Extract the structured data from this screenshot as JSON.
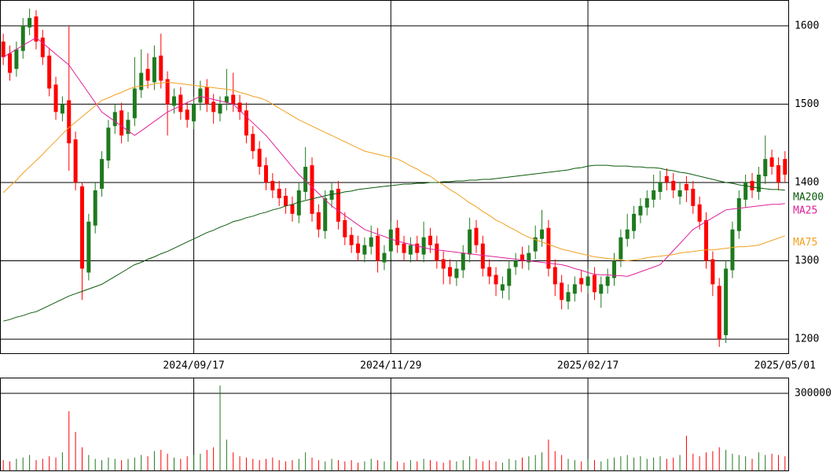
{
  "chart_data": {
    "type": "candlestick",
    "categories": [
      null,
      null,
      null,
      null,
      null,
      null,
      null,
      null,
      null,
      null,
      null,
      null,
      null,
      null,
      null,
      null,
      null,
      null,
      null,
      null,
      null,
      null,
      null,
      null,
      null,
      null,
      null,
      null,
      null,
      "2024/09/17",
      null,
      null,
      null,
      null,
      null,
      null,
      null,
      null,
      null,
      null,
      null,
      null,
      null,
      null,
      null,
      null,
      null,
      null,
      null,
      null,
      null,
      null,
      null,
      null,
      null,
      null,
      null,
      null,
      null,
      "2024/11/29",
      null,
      null,
      null,
      null,
      null,
      null,
      null,
      null,
      null,
      null,
      null,
      null,
      null,
      null,
      null,
      null,
      null,
      null,
      null,
      null,
      null,
      null,
      null,
      null,
      null,
      null,
      null,
      null,
      null,
      "2025/02/17",
      null,
      null,
      null,
      null,
      null,
      null,
      null,
      null,
      null,
      null,
      null,
      null,
      null,
      null,
      null,
      null,
      null,
      null,
      null,
      null,
      null,
      null,
      null,
      null,
      null,
      null,
      null,
      null,
      null,
      "2025/05/01"
    ],
    "open": [
      1580,
      1565,
      1545,
      1568,
      1598,
      1612,
      1585,
      1562,
      1525,
      1488,
      1505,
      1455,
      1395,
      1285,
      1345,
      1392,
      1428,
      1472,
      1492,
      1462,
      1482,
      1518,
      1545,
      1528,
      1562,
      1532,
      1498,
      1512,
      1493,
      1478,
      1502,
      1522,
      1503,
      1488,
      1502,
      1512,
      1502,
      1492,
      1462,
      1443,
      1422,
      1402,
      1392,
      1383,
      1372,
      1358,
      1388,
      1422,
      1362,
      1338,
      1378,
      1392,
      1352,
      1333,
      1322,
      1308,
      1318,
      1332,
      1298,
      1312,
      1342,
      1322,
      1308,
      1322,
      1308,
      1332,
      1322,
      1302,
      1292,
      1278,
      1288,
      1308,
      1342,
      1322,
      1292,
      1282,
      1262,
      1268,
      1292,
      1308,
      1298,
      1312,
      1328,
      1342,
      1292,
      1272,
      1248,
      1258,
      1278,
      1268,
      1282,
      1258,
      1268,
      1278,
      1302,
      1328,
      1338,
      1358,
      1368,
      1378,
      1388,
      1408,
      1402,
      1382,
      1398,
      1392,
      1372,
      1352,
      1302,
      1268,
      1205,
      1288,
      1338,
      1378,
      1402,
      1388,
      1408,
      1432,
      1422,
      1430
    ],
    "high": [
      1590,
      1575,
      1580,
      1610,
      1622,
      1620,
      1595,
      1572,
      1535,
      1510,
      1600,
      1465,
      1400,
      1360,
      1400,
      1440,
      1480,
      1500,
      1502,
      1490,
      1560,
      1570,
      1565,
      1575,
      1590,
      1542,
      1520,
      1522,
      1503,
      1510,
      1530,
      1532,
      1513,
      1510,
      1545,
      1540,
      1512,
      1502,
      1472,
      1453,
      1432,
      1412,
      1402,
      1393,
      1382,
      1400,
      1445,
      1432,
      1372,
      1390,
      1400,
      1402,
      1362,
      1343,
      1332,
      1330,
      1345,
      1342,
      1320,
      1350,
      1352,
      1332,
      1330,
      1332,
      1350,
      1342,
      1332,
      1312,
      1302,
      1300,
      1320,
      1355,
      1352,
      1332,
      1302,
      1292,
      1280,
      1300,
      1310,
      1318,
      1320,
      1345,
      1365,
      1352,
      1302,
      1282,
      1270,
      1280,
      1288,
      1290,
      1292,
      1280,
      1290,
      1310,
      1340,
      1360,
      1370,
      1380,
      1390,
      1410,
      1415,
      1418,
      1412,
      1400,
      1408,
      1402,
      1382,
      1362,
      1312,
      1278,
      1300,
      1350,
      1390,
      1410,
      1412,
      1420,
      1460,
      1442,
      1432,
      1440
    ],
    "low": [
      1550,
      1530,
      1535,
      1558,
      1588,
      1570,
      1550,
      1510,
      1480,
      1478,
      1415,
      1390,
      1250,
      1275,
      1335,
      1382,
      1418,
      1462,
      1450,
      1452,
      1472,
      1508,
      1520,
      1518,
      1520,
      1460,
      1488,
      1480,
      1470,
      1468,
      1492,
      1490,
      1475,
      1478,
      1492,
      1490,
      1480,
      1450,
      1430,
      1410,
      1390,
      1380,
      1370,
      1360,
      1350,
      1348,
      1378,
      1350,
      1330,
      1328,
      1368,
      1340,
      1320,
      1310,
      1300,
      1298,
      1308,
      1285,
      1288,
      1302,
      1310,
      1300,
      1298,
      1300,
      1298,
      1310,
      1290,
      1270,
      1270,
      1268,
      1278,
      1298,
      1310,
      1280,
      1270,
      1255,
      1252,
      1250,
      1282,
      1290,
      1288,
      1302,
      1318,
      1280,
      1255,
      1238,
      1238,
      1248,
      1260,
      1258,
      1250,
      1240,
      1258,
      1268,
      1292,
      1318,
      1328,
      1348,
      1358,
      1368,
      1378,
      1390,
      1380,
      1372,
      1375,
      1360,
      1340,
      1290,
      1255,
      1190,
      1195,
      1278,
      1328,
      1368,
      1380,
      1378,
      1398,
      1410,
      1390,
      1400
    ],
    "close": [
      1560,
      1540,
      1570,
      1600,
      1610,
      1580,
      1560,
      1520,
      1490,
      1500,
      1450,
      1400,
      1290,
      1350,
      1390,
      1430,
      1470,
      1490,
      1460,
      1480,
      1520,
      1540,
      1530,
      1560,
      1530,
      1500,
      1510,
      1490,
      1480,
      1500,
      1520,
      1500,
      1490,
      1500,
      1510,
      1500,
      1490,
      1460,
      1440,
      1420,
      1400,
      1390,
      1380,
      1370,
      1360,
      1390,
      1420,
      1360,
      1340,
      1380,
      1390,
      1350,
      1330,
      1320,
      1310,
      1320,
      1330,
      1300,
      1310,
      1340,
      1320,
      1310,
      1320,
      1310,
      1330,
      1320,
      1300,
      1290,
      1280,
      1290,
      1310,
      1340,
      1320,
      1290,
      1280,
      1270,
      1270,
      1290,
      1300,
      1300,
      1310,
      1330,
      1340,
      1290,
      1270,
      1250,
      1260,
      1270,
      1270,
      1280,
      1260,
      1270,
      1280,
      1300,
      1330,
      1340,
      1360,
      1370,
      1380,
      1390,
      1400,
      1400,
      1390,
      1390,
      1390,
      1370,
      1350,
      1300,
      1270,
      1200,
      1290,
      1340,
      1380,
      1400,
      1390,
      1410,
      1430,
      1420,
      1400,
      1410
    ],
    "up_color": "#1e7a1e",
    "down_color": "#ff0000",
    "ylim": [
      1181,
      1633
    ],
    "yticks": [
      1200,
      1300,
      1400,
      1500,
      1600
    ],
    "grid": true,
    "moving_averages": [
      {
        "name": "MA200",
        "color": "#0a5a0a",
        "values": [
          1223,
          1225,
          1228,
          1230,
          1233,
          1235,
          1239,
          1243,
          1247,
          1251,
          1255,
          1258,
          1261,
          1264,
          1267,
          1270,
          1275,
          1280,
          1285,
          1290,
          1295,
          1298,
          1302,
          1305,
          1309,
          1312,
          1316,
          1320,
          1324,
          1328,
          1332,
          1336,
          1339,
          1343,
          1346,
          1350,
          1352,
          1355,
          1357,
          1360,
          1362,
          1365,
          1367,
          1370,
          1372,
          1375,
          1377,
          1379,
          1381,
          1383,
          1385,
          1386,
          1388,
          1389,
          1391,
          1392,
          1393,
          1394,
          1395,
          1396,
          1397,
          1398,
          1398,
          1399,
          1399,
          1400,
          1400,
          1401,
          1401,
          1402,
          1402,
          1403,
          1403,
          1404,
          1404,
          1405,
          1406,
          1407,
          1408,
          1409,
          1410,
          1411,
          1412,
          1413,
          1414,
          1415,
          1416,
          1418,
          1419,
          1421,
          1422,
          1422,
          1422,
          1421,
          1421,
          1421,
          1420,
          1420,
          1419,
          1419,
          1418,
          1416,
          1415,
          1413,
          1412,
          1410,
          1408,
          1406,
          1404,
          1402,
          1400,
          1399,
          1397,
          1396,
          1394,
          1393,
          1392,
          1391,
          1391,
          1390
        ]
      },
      {
        "name": "MA25",
        "color": "#e0209a",
        "values": [
          1560,
          1565,
          1570,
          1575,
          1580,
          1585,
          1578,
          1571,
          1564,
          1557,
          1550,
          1538,
          1526,
          1514,
          1502,
          1490,
          1484,
          1478,
          1472,
          1466,
          1460,
          1466,
          1472,
          1478,
          1484,
          1490,
          1494,
          1498,
          1502,
          1506,
          1510,
          1508,
          1506,
          1504,
          1502,
          1500,
          1492,
          1484,
          1476,
          1468,
          1460,
          1450,
          1440,
          1430,
          1420,
          1410,
          1402,
          1394,
          1386,
          1378,
          1370,
          1364,
          1358,
          1352,
          1346,
          1340,
          1337,
          1334,
          1331,
          1328,
          1325,
          1323,
          1321,
          1319,
          1317,
          1315,
          1314,
          1313,
          1312,
          1311,
          1310,
          1309,
          1308,
          1307,
          1306,
          1305,
          1304,
          1303,
          1302,
          1301,
          1300,
          1299,
          1298,
          1297,
          1296,
          1295,
          1293,
          1290,
          1288,
          1285,
          1283,
          1282,
          1282,
          1281,
          1281,
          1280,
          1283,
          1286,
          1289,
          1292,
          1295,
          1304,
          1313,
          1322,
          1331,
          1340,
          1345,
          1350,
          1355,
          1360,
          1365,
          1366,
          1367,
          1368,
          1369,
          1370,
          1371,
          1372,
          1372,
          1373
        ]
      },
      {
        "name": "MA75",
        "color": "#f0a020",
        "values": [
          1387,
          1395,
          1403,
          1412,
          1420,
          1428,
          1436,
          1445,
          1453,
          1462,
          1470,
          1477,
          1484,
          1491,
          1498,
          1505,
          1508,
          1512,
          1515,
          1519,
          1522,
          1523,
          1524,
          1526,
          1527,
          1528,
          1527,
          1526,
          1525,
          1524,
          1523,
          1522,
          1521,
          1520,
          1519,
          1518,
          1515,
          1513,
          1510,
          1508,
          1505,
          1500,
          1495,
          1490,
          1485,
          1480,
          1476,
          1472,
          1468,
          1464,
          1460,
          1456,
          1452,
          1448,
          1444,
          1440,
          1438,
          1436,
          1434,
          1432,
          1430,
          1426,
          1421,
          1417,
          1412,
          1408,
          1402,
          1397,
          1391,
          1386,
          1380,
          1374,
          1369,
          1363,
          1358,
          1352,
          1348,
          1343,
          1339,
          1334,
          1330,
          1327,
          1324,
          1321,
          1318,
          1315,
          1313,
          1311,
          1309,
          1307,
          1305,
          1304,
          1303,
          1302,
          1301,
          1300,
          1301,
          1302,
          1304,
          1305,
          1306,
          1307,
          1308,
          1310,
          1311,
          1312,
          1313,
          1314,
          1314,
          1315,
          1316,
          1317,
          1318,
          1318,
          1319,
          1320,
          1323,
          1326,
          1329,
          1332
        ]
      }
    ],
    "volume": {
      "ylim": [
        0,
        361000
      ],
      "yticks": [
        300000
      ],
      "values": [
        40000,
        35000,
        45000,
        50000,
        60000,
        40000,
        45000,
        55000,
        50000,
        70000,
        230000,
        150000,
        90000,
        60000,
        45000,
        40000,
        50000,
        45000,
        40000,
        45000,
        50000,
        60000,
        55000,
        75000,
        80000,
        65000,
        50000,
        45000,
        55000,
        60000,
        65000,
        80000,
        90000,
        330000,
        120000,
        70000,
        55000,
        50000,
        45000,
        40000,
        45000,
        50000,
        40000,
        35000,
        40000,
        45000,
        70000,
        50000,
        40000,
        35000,
        45000,
        40000,
        35000,
        40000,
        30000,
        35000,
        45000,
        40000,
        35000,
        40000,
        35000,
        30000,
        40000,
        35000,
        45000,
        40000,
        35000,
        30000,
        40000,
        35000,
        40000,
        55000,
        45000,
        35000,
        40000,
        35000,
        30000,
        45000,
        40000,
        50000,
        55000,
        60000,
        70000,
        120000,
        75000,
        60000,
        45000,
        40000,
        35000,
        45000,
        40000,
        35000,
        45000,
        50000,
        55000,
        60000,
        50000,
        55000,
        45000,
        50000,
        55000,
        45000,
        50000,
        60000,
        135000,
        65000,
        55000,
        70000,
        75000,
        90000,
        80000,
        65000,
        60000,
        55000,
        45000,
        70000,
        60000,
        65000,
        60000,
        55000
      ]
    }
  }
}
